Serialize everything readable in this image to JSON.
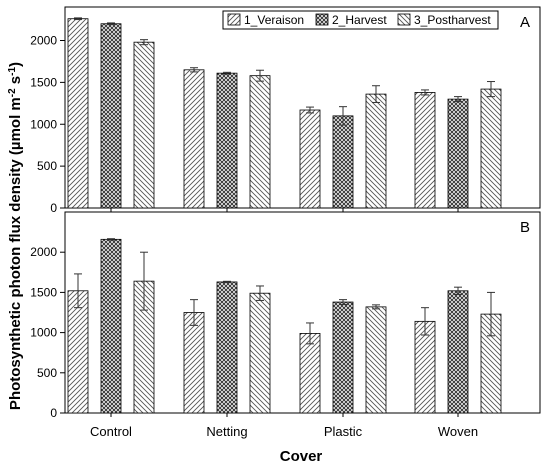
{
  "chart_data": {
    "type": "bar",
    "ylabel_main": "Photosynthetic photon flux density (µmol m",
    "ylabel_sup1": "-2",
    "ylabel_mid": " s",
    "ylabel_sup2": "-1",
    "ylabel_end": ")",
    "xlabel": "Cover",
    "categories": [
      "Control",
      "Netting",
      "Plastic",
      "Woven"
    ],
    "legend": {
      "placement": "top-right of panel A",
      "entries": [
        "1_Veraison",
        "2_Harvest",
        "3_Postharvest"
      ]
    },
    "colors": {
      "bar_fill": "#ffffff",
      "pattern_stroke": "#555555",
      "frame": "#000000"
    },
    "panels": [
      {
        "label": "A",
        "ylim": [
          0,
          2400
        ],
        "yticks": [
          0,
          500,
          1000,
          1500,
          2000
        ],
        "series": [
          {
            "name": "1_Veraison",
            "pattern": "diag-right",
            "values": [
              2260,
              1650,
              1170,
              1380
            ],
            "errors": [
              10,
              25,
              35,
              30
            ]
          },
          {
            "name": "2_Harvest",
            "pattern": "crosshatch",
            "values": [
              2200,
              1610,
              1100,
              1300
            ],
            "errors": [
              10,
              10,
              110,
              30
            ]
          },
          {
            "name": "3_Postharvest",
            "pattern": "diag-left",
            "values": [
              1980,
              1580,
              1360,
              1420
            ],
            "errors": [
              30,
              65,
              100,
              90
            ]
          }
        ]
      },
      {
        "label": "B",
        "ylim": [
          0,
          2500
        ],
        "yticks": [
          0,
          500,
          1000,
          1500,
          2000
        ],
        "series": [
          {
            "name": "1_Veraison",
            "pattern": "diag-right",
            "values": [
              1520,
              1250,
              990,
              1140
            ],
            "errors": [
              210,
              160,
              130,
              170
            ]
          },
          {
            "name": "2_Harvest",
            "pattern": "crosshatch",
            "values": [
              2160,
              1630,
              1380,
              1520
            ],
            "errors": [
              8,
              8,
              30,
              45
            ]
          },
          {
            "name": "3_Postharvest",
            "pattern": "diag-left",
            "values": [
              1640,
              1490,
              1320,
              1230
            ],
            "errors": [
              360,
              90,
              25,
              270
            ]
          }
        ]
      }
    ]
  }
}
